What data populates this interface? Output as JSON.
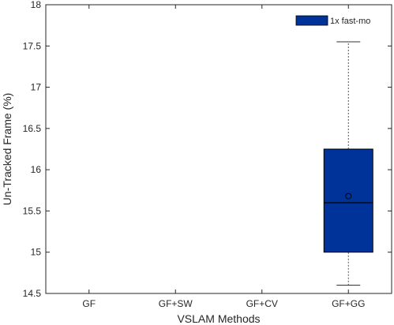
{
  "chart_data": {
    "type": "box",
    "categories": [
      "GF",
      "GF+SW",
      "GF+CV",
      "GF+GG"
    ],
    "xlabel": "VSLAM Methods",
    "ylabel": "Un-Tracked Frame (%)",
    "ylim": [
      14.5,
      18
    ],
    "yticks": [
      14.5,
      15,
      15.5,
      16,
      16.5,
      17,
      17.5,
      18
    ],
    "ytick_labels": [
      "14.5",
      "15",
      "15.5",
      "16",
      "16.5",
      "17",
      "17.5",
      "18"
    ],
    "grid": false,
    "legend": {
      "position": "top-right"
    },
    "series": [
      {
        "name": "1x fast-mo",
        "color": "#003399",
        "boxes": [
          null,
          null,
          null,
          {
            "whisker_low": 14.6,
            "q1": 15.0,
            "median": 15.6,
            "q3": 16.25,
            "whisker_high": 17.55,
            "mean": 15.68
          }
        ]
      }
    ]
  }
}
